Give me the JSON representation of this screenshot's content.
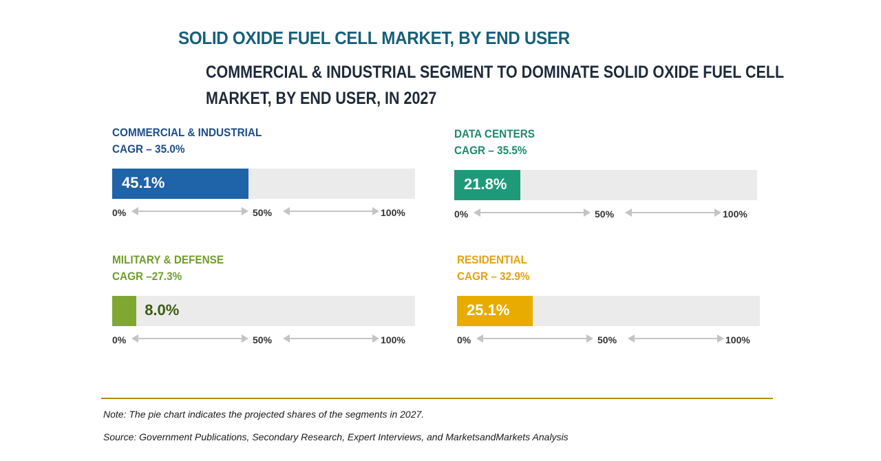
{
  "title": "SOLID OXIDE FUEL CELL MARKET, BY END USER",
  "subtitle_line1": "COMMERCIAL & INDUSTRIAL SEGMENT TO DOMINATE SOLID OXIDE FUEL CELL",
  "subtitle_line2": "MARKET, BY END USER, IN 2027",
  "note": "Note: The pie chart indicates the projected shares of the segments in 2027.",
  "source": "Source: Government Publications, Secondary Research, Expert Interviews, and MarketsandMarkets Analysis",
  "chart_data": {
    "type": "bar",
    "title": "SOLID OXIDE FUEL CELL MARKET, BY END USER",
    "xlim": [
      0,
      100
    ],
    "ticks": [
      "0%",
      "50%",
      "100%"
    ],
    "categories": [
      "Commercial & Industrial",
      "Data Centers",
      "Military & Defense",
      "Residential"
    ],
    "segments": [
      {
        "name": "COMMERCIAL & INDUSTRIAL",
        "cagr_label": "CAGR – 35.0%",
        "cagr": 35.0,
        "share": 45.1,
        "share_label": "45.1%",
        "color": "#1f63a8",
        "label_color": "#1b4f8c",
        "value_text_color": "#ffffff"
      },
      {
        "name": "DATA CENTERS",
        "cagr_label": "CAGR – 35.5%",
        "cagr": 35.5,
        "share": 21.8,
        "share_label": "21.8%",
        "color": "#1e9a7a",
        "label_color": "#1e8a6a",
        "value_text_color": "#ffffff"
      },
      {
        "name": "MILITARY & DEFENSE",
        "cagr_label": "CAGR –27.3%",
        "cagr": 27.3,
        "share": 8.0,
        "share_label": "8.0%",
        "color": "#7ea832",
        "label_color": "#6e9e2a",
        "value_text_color": "#3d5a12"
      },
      {
        "name": "RESIDENTIAL",
        "cagr_label": "CAGR – 32.9%",
        "cagr": 32.9,
        "share": 25.1,
        "share_label": "25.1%",
        "color": "#e8ac00",
        "label_color": "#e3a20f",
        "value_text_color": "#ffffff"
      }
    ]
  }
}
